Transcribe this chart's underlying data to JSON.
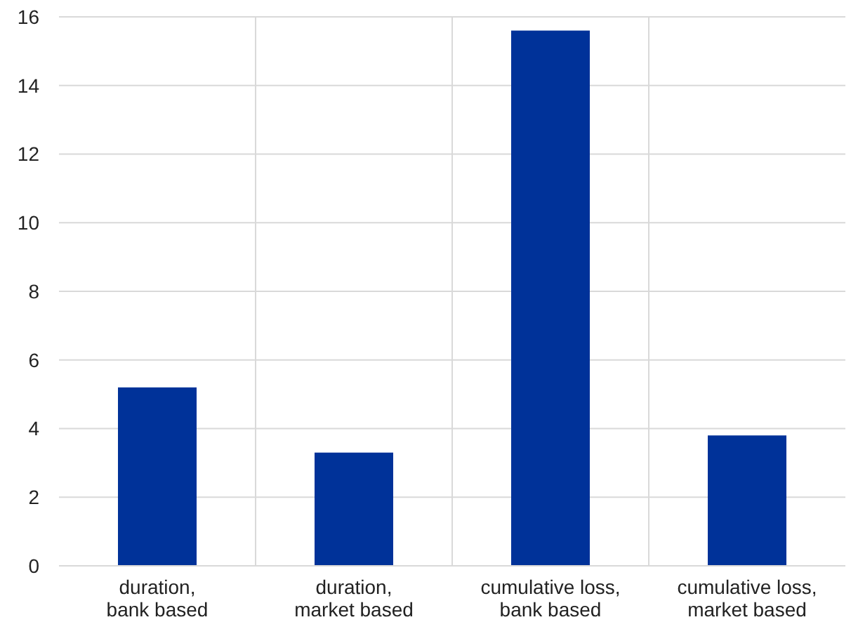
{
  "chart_data": {
    "type": "bar",
    "categories": [
      "duration, bank based",
      "duration, market based",
      "cumulative loss, bank based",
      "cumulative loss, market based"
    ],
    "values": [
      5.2,
      3.3,
      15.6,
      3.8
    ],
    "color": "#003299",
    "ylim": [
      0,
      16
    ],
    "yticks": [
      0,
      2,
      4,
      6,
      8,
      10,
      12,
      14,
      16
    ],
    "grid": true
  }
}
